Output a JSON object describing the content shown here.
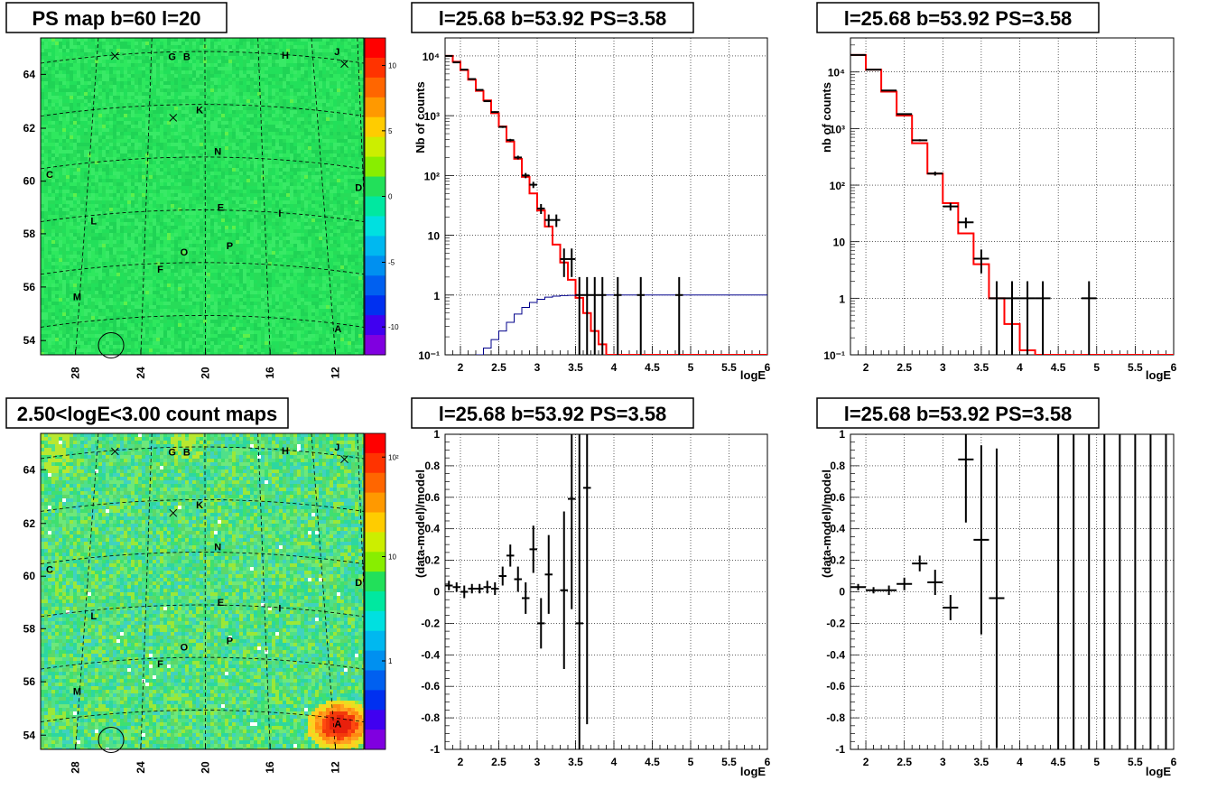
{
  "maps": [
    {
      "title": "PS map b=60 l=20",
      "xticks": [
        "28",
        "24",
        "20",
        "16",
        "12"
      ],
      "yticks": [
        "64",
        "62",
        "60",
        "58",
        "56",
        "54"
      ],
      "palette_labels": [
        "10",
        "5",
        "0",
        "-5",
        "-10"
      ],
      "sources": [
        "G",
        "B",
        "H",
        "J",
        "K",
        "N",
        "C",
        "D",
        "E",
        "I",
        "L",
        "P",
        "O",
        "F",
        "M",
        "A"
      ]
    },
    {
      "title": "2.50<logE<3.00 count maps",
      "xticks": [
        "28",
        "24",
        "20",
        "16",
        "12"
      ],
      "yticks": [
        "64",
        "62",
        "60",
        "58",
        "56",
        "54"
      ],
      "palette_labels": [
        "10²",
        "10",
        "1"
      ],
      "sources": [
        "G",
        "B",
        "H",
        "J",
        "K",
        "N",
        "C",
        "D",
        "E",
        "I",
        "L",
        "P",
        "O",
        "F",
        "M",
        "A"
      ]
    }
  ],
  "chart_data": [
    {
      "type": "line",
      "title": "l=25.68 b=53.92 PS=3.58",
      "xlabel": "logE",
      "ylabel": "Nb of counts",
      "xlim": [
        1.8,
        6
      ],
      "ylim": [
        0.1,
        20000
      ],
      "log_y": true,
      "grid": true,
      "xtick_labels": [
        "2",
        "2.5",
        "3",
        "3.5",
        "4",
        "4.5",
        "5",
        "5.5",
        "6"
      ],
      "ytick_labels": [
        "10⁻¹",
        "1",
        "10",
        "10²",
        "10³",
        "10⁴"
      ],
      "series": [
        {
          "color": "#ff0000",
          "style": "step",
          "bin_width": 0.1,
          "x": [
            1.8,
            1.9,
            2.0,
            2.1,
            2.2,
            2.3,
            2.4,
            2.5,
            2.6,
            2.7,
            2.8,
            2.9,
            3.0,
            3.1,
            3.2,
            3.3,
            3.4,
            3.5,
            3.6,
            3.7,
            3.8,
            3.9,
            4.0,
            4.1,
            4.2,
            4.3,
            4.4,
            4.5,
            4.6,
            4.7,
            4.8,
            4.9,
            5.0,
            5.1,
            5.2,
            5.3,
            5.4,
            5.5,
            5.6,
            5.7,
            5.8,
            5.9
          ],
          "y": [
            10000,
            8000,
            5800,
            4000,
            2600,
            1800,
            1100,
            660,
            370,
            190,
            95,
            50,
            26,
            14,
            7,
            3.5,
            1.8,
            0.9,
            0.5,
            0.25,
            0.15,
            0.1,
            0.1,
            0.1,
            0.1,
            0.1,
            0.1,
            0.1,
            0.1,
            0.1,
            0.1,
            0.1,
            0.1,
            0.1,
            0.1,
            0.1,
            0.1,
            0.1,
            0.1,
            0.1,
            0.1,
            0.1
          ]
        },
        {
          "color": "#00008b",
          "style": "step",
          "bin_width": 0.1,
          "x": [
            2.2,
            2.3,
            2.4,
            2.5,
            2.6,
            2.7,
            2.8,
            2.9,
            3.0,
            3.1,
            3.2,
            3.3,
            3.4,
            3.5,
            3.6,
            3.7,
            3.8,
            3.9,
            4.0,
            4.1,
            4.2,
            4.3,
            4.4,
            4.5,
            4.6,
            4.7,
            4.8,
            4.9,
            5.0,
            5.1,
            5.2,
            5.3,
            5.4,
            5.5,
            5.6,
            5.7,
            5.8,
            5.9
          ],
          "y": [
            0.1,
            0.13,
            0.18,
            0.25,
            0.35,
            0.48,
            0.62,
            0.75,
            0.85,
            0.92,
            0.96,
            0.98,
            0.99,
            1,
            1,
            1,
            1,
            1,
            1,
            1,
            1,
            1,
            1,
            1,
            1,
            1,
            1,
            1,
            1,
            1,
            1,
            1,
            1,
            1,
            1,
            1,
            1,
            1
          ]
        },
        {
          "color": "#000000",
          "style": "errorbar",
          "x": [
            1.85,
            1.95,
            2.05,
            2.15,
            2.25,
            2.35,
            2.45,
            2.55,
            2.65,
            2.75,
            2.85,
            2.95,
            3.05,
            3.15,
            3.25,
            3.35,
            3.45,
            3.55,
            3.65,
            3.75,
            3.85,
            4.05,
            4.35,
            4.85
          ],
          "y": [
            10000,
            7800,
            5900,
            4100,
            2700,
            1750,
            1150,
            650,
            390,
            200,
            100,
            70,
            28,
            18,
            18,
            4,
            4,
            1,
            1,
            1,
            1,
            1,
            1,
            1
          ]
        }
      ]
    },
    {
      "type": "line",
      "title": "l=25.68 b=53.92 PS=3.58",
      "xlabel": "logE",
      "ylabel": "nb of counts",
      "xlim": [
        1.8,
        6
      ],
      "ylim": [
        0.1,
        40000
      ],
      "log_y": true,
      "grid": true,
      "xtick_labels": [
        "2",
        "2.5",
        "3",
        "3.5",
        "4",
        "4.5",
        "5",
        "5.5",
        "6"
      ],
      "ytick_labels": [
        "10⁻¹",
        "1",
        "10",
        "10²",
        "10³",
        "10⁴"
      ],
      "series": [
        {
          "color": "#ff0000",
          "style": "step",
          "bin_width": 0.2,
          "x": [
            1.8,
            2.0,
            2.2,
            2.4,
            2.6,
            2.8,
            3.0,
            3.2,
            3.4,
            3.6,
            3.8,
            4.0,
            4.2,
            4.4,
            4.6,
            4.8,
            5.0,
            5.2,
            5.4,
            5.6,
            5.8
          ],
          "y": [
            20000,
            11000,
            4500,
            1700,
            550,
            160,
            48,
            14,
            4,
            1,
            0.35,
            0.12,
            0.1,
            0.1,
            0.1,
            0.1,
            0.1,
            0.1,
            0.1,
            0.1,
            0.1
          ]
        },
        {
          "color": "#000000",
          "style": "errorbar",
          "x": [
            1.9,
            2.1,
            2.3,
            2.5,
            2.7,
            2.9,
            3.1,
            3.3,
            3.5,
            3.7,
            3.9,
            4.1,
            4.3,
            4.9
          ],
          "y": [
            20000,
            11000,
            4700,
            1800,
            620,
            160,
            42,
            22,
            5,
            1,
            1,
            1,
            1,
            1
          ]
        }
      ]
    },
    {
      "type": "scatter",
      "title": "l=25.68 b=53.92 PS=3.58",
      "xlabel": "logE",
      "ylabel": "(data-model)/model",
      "xlim": [
        1.8,
        6
      ],
      "ylim": [
        -1,
        1
      ],
      "grid": true,
      "xtick_labels": [
        "2",
        "2.5",
        "3",
        "3.5",
        "4",
        "4.5",
        "5",
        "5.5",
        "6"
      ],
      "ytick_labels": [
        "-1",
        "-0.8",
        "-0.6",
        "-0.4",
        "-0.2",
        "0",
        "0.2",
        "0.4",
        "0.6",
        "0.8",
        "1"
      ],
      "series": [
        {
          "color": "#000000",
          "style": "errorbar",
          "x": [
            1.85,
            1.95,
            2.05,
            2.15,
            2.25,
            2.35,
            2.45,
            2.55,
            2.65,
            2.75,
            2.85,
            2.95,
            3.05,
            3.15,
            3.35,
            3.45,
            3.55,
            3.65
          ],
          "y": [
            0.04,
            0.03,
            0.0,
            0.02,
            0.02,
            0.03,
            0.02,
            0.1,
            0.23,
            0.08,
            -0.04,
            0.27,
            -0.2,
            0.11,
            0.01,
            0.59,
            -0.2,
            0.66
          ]
        }
      ]
    },
    {
      "type": "scatter",
      "title": "l=25.68 b=53.92 PS=3.58",
      "xlabel": "logE",
      "ylabel": "(data-model)/model",
      "xlim": [
        1.8,
        6
      ],
      "ylim": [
        -1,
        1
      ],
      "grid": true,
      "xtick_labels": [
        "2",
        "2.5",
        "3",
        "3.5",
        "4",
        "4.5",
        "5",
        "5.5",
        "6"
      ],
      "ytick_labels": [
        "-1",
        "-0.8",
        "-0.6",
        "-0.4",
        "-0.2",
        "0",
        "0.2",
        "0.4",
        "0.6",
        "0.8",
        "1"
      ],
      "series": [
        {
          "color": "#000000",
          "style": "errorbar",
          "x": [
            1.9,
            2.1,
            2.3,
            2.5,
            2.7,
            2.9,
            3.1,
            3.3,
            3.5,
            3.7
          ],
          "y": [
            0.03,
            0.01,
            0.01,
            0.05,
            0.18,
            0.06,
            -0.1,
            0.84,
            0.33,
            -0.04
          ]
        }
      ]
    }
  ]
}
